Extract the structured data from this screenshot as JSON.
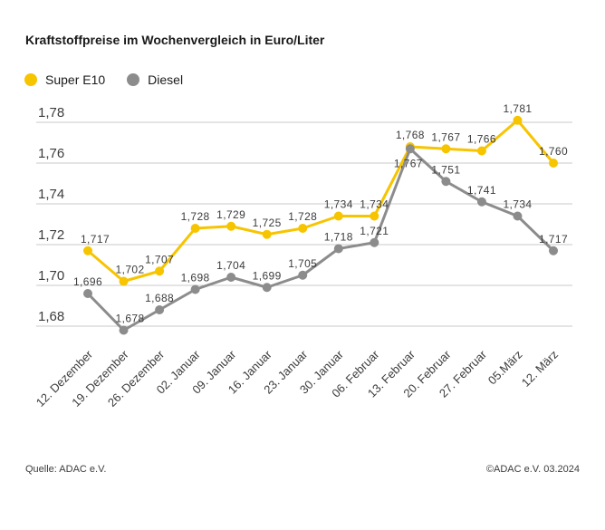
{
  "title": "Kraftstoffpreise im Wochenvergleich in Euro/Liter",
  "footer": {
    "source": "Quelle: ADAC e.V.",
    "copyright": "©ADAC e.V. 03.2024"
  },
  "colors": {
    "super_e10": "#F7C400",
    "diesel": "#8C8C8C",
    "grid": "#c9c9c9",
    "label_text": "#3c3c3c"
  },
  "chart_data": {
    "type": "line",
    "title": "Kraftstoffpreise im Wochenvergleich in Euro/Liter",
    "unit": "Euro/Liter",
    "categories": [
      "12. Dezember",
      "19. Dezember",
      "26. Dezember",
      "02. Januar",
      "09. Januar",
      "16. Januar",
      "23. Januar",
      "30. Januar",
      "06. Februar",
      "13. Februar",
      "20. Februar",
      "27. Februar",
      "05.März",
      "12. März"
    ],
    "series": [
      {
        "name": "Super E10",
        "color": "#F7C400",
        "values": [
          1.717,
          1.702,
          1.707,
          1.728,
          1.729,
          1.725,
          1.728,
          1.734,
          1.734,
          1.768,
          1.767,
          1.766,
          1.781,
          1.76
        ],
        "labels": [
          "1,717",
          "1,702",
          "1,707",
          "1,728",
          "1,729",
          "1,725",
          "1,728",
          "1,734",
          "1,734",
          "1,768",
          "1,767",
          "1,766",
          "1,781",
          "1,760"
        ]
      },
      {
        "name": "Diesel",
        "color": "#8C8C8C",
        "values": [
          1.696,
          1.678,
          1.688,
          1.698,
          1.704,
          1.699,
          1.705,
          1.718,
          1.721,
          1.767,
          1.751,
          1.741,
          1.734,
          1.717
        ],
        "labels": [
          "1,696",
          "1,678",
          "1,688",
          "1,698",
          "1,704",
          "1,699",
          "1,705",
          "1,718",
          "1,721",
          "1,767",
          "1,751",
          "1,741",
          "1,734",
          "1,717"
        ]
      }
    ],
    "ylim": [
      1.68,
      1.78
    ],
    "ytick_step": 0.02,
    "ytick_labels": [
      "1,78",
      "1,76",
      "1,74",
      "1,72",
      "1,70",
      "1,68"
    ],
    "grid": true,
    "legend_position": "top-left"
  }
}
